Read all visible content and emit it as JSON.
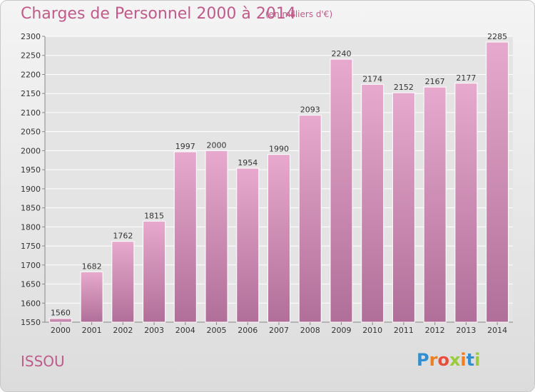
{
  "header": {
    "title": "Charges de Personnel 2000 à 2014",
    "subtitle": "(en milliers d'€)"
  },
  "footer": {
    "city": "ISSOU",
    "logo": "Proxiti"
  },
  "colors": {
    "bar_top": "#e7a9cd",
    "bar_bottom": "#b06f98",
    "title": "#c05a8a",
    "logo": [
      "#2f8fd1",
      "#f07d1e",
      "#e94e3c",
      "#9acb3c",
      "#f07d1e",
      "#2f8fd1",
      "#9acb3c"
    ]
  },
  "chart_data": {
    "type": "bar",
    "title": "Charges de Personnel 2000 à 2014",
    "subtitle": "(en milliers d'€)",
    "categories": [
      "2000",
      "2001",
      "2002",
      "2003",
      "2004",
      "2005",
      "2006",
      "2007",
      "2008",
      "2009",
      "2010",
      "2011",
      "2012",
      "2013",
      "2014"
    ],
    "values": [
      1560,
      1682,
      1762,
      1815,
      1997,
      2000,
      1954,
      1990,
      2093,
      2240,
      2174,
      2152,
      2167,
      2177,
      2285
    ],
    "ylim": [
      1550,
      2300
    ],
    "yticks": [
      1550,
      1600,
      1650,
      1700,
      1750,
      1800,
      1850,
      1900,
      1950,
      2000,
      2050,
      2100,
      2150,
      2200,
      2250,
      2300
    ],
    "grid": true,
    "xlabel": "",
    "ylabel": ""
  }
}
